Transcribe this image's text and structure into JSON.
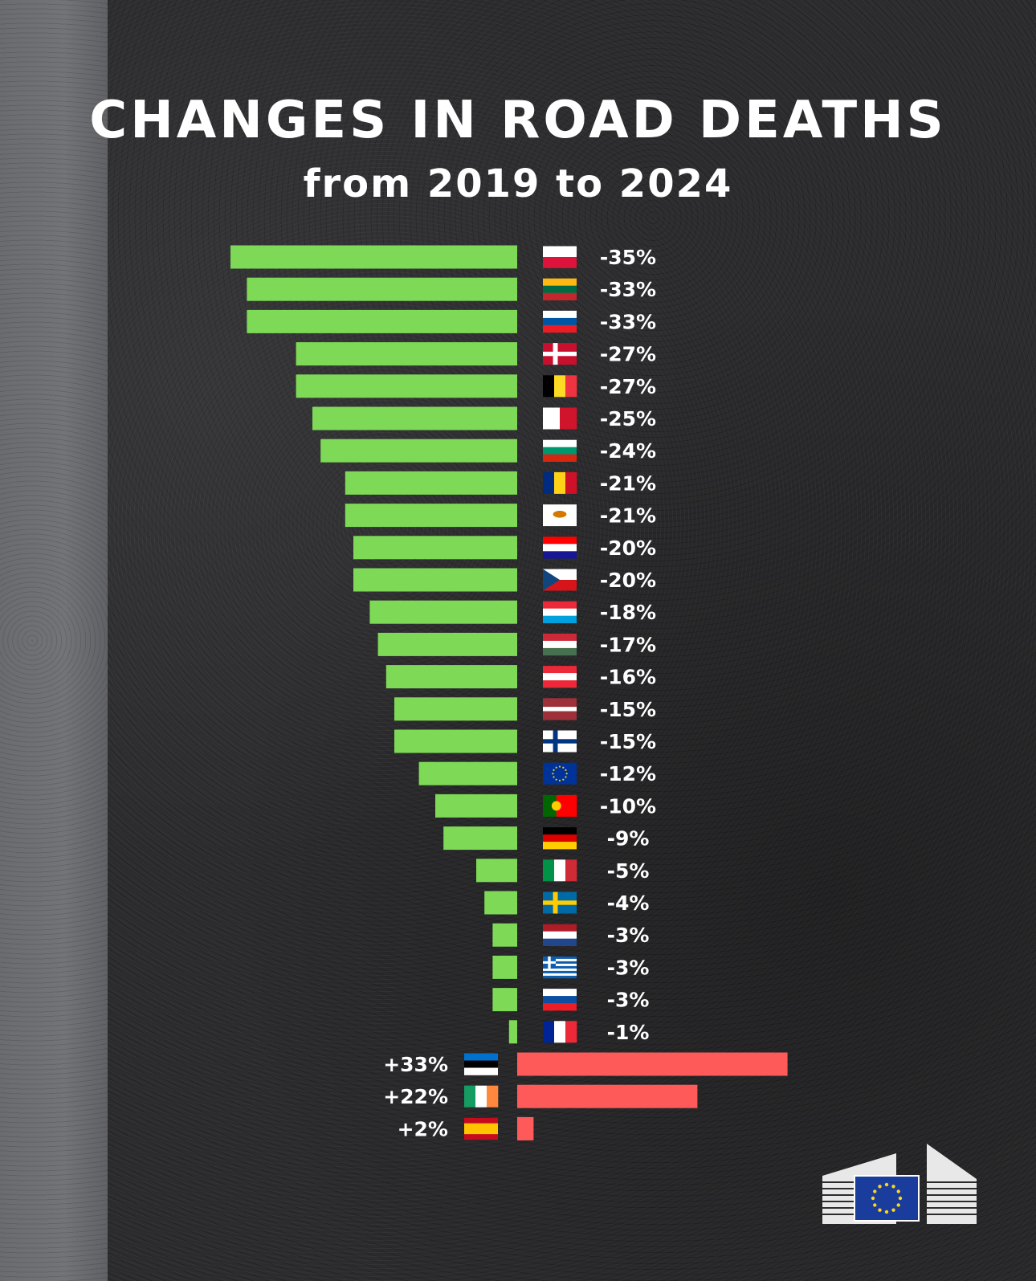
{
  "header": {
    "title": "CHANGES IN ROAD DEATHS",
    "subtitle": "from 2019 to 2024"
  },
  "colors": {
    "decrease": "#7ed957",
    "increase": "#ff5a5a",
    "text": "#ffffff"
  },
  "chart_data": {
    "type": "bar",
    "orientation": "horizontal",
    "title": "CHANGES IN ROAD DEATHS",
    "subtitle": "from 2019 to 2024",
    "unit": "%",
    "categories": [
      "PL",
      "LT",
      "SI",
      "DK",
      "BE",
      "MT",
      "BG",
      "RO",
      "CY",
      "HR",
      "CZ",
      "LU",
      "HU",
      "AT",
      "LV",
      "FI",
      "EU",
      "PT",
      "DE",
      "IT",
      "SE",
      "NL",
      "GR",
      "SK",
      "FR",
      "EE",
      "IE",
      "ES"
    ],
    "values": [
      -35,
      -33,
      -33,
      -27,
      -27,
      -25,
      -24,
      -21,
      -21,
      -20,
      -20,
      -18,
      -17,
      -16,
      -15,
      -15,
      -12,
      -10,
      -9,
      -5,
      -4,
      -3,
      -3,
      -3,
      -1,
      33,
      22,
      2
    ],
    "labels": [
      "-35%",
      "-33%",
      "-33%",
      "-27%",
      "-27%",
      "-25%",
      "-24%",
      "-21%",
      "-21%",
      "-20%",
      "-20%",
      "-18%",
      "-17%",
      "-16%",
      "-15%",
      "-15%",
      "-12%",
      "-10%",
      "-9%",
      "-5%",
      "-4%",
      "-3%",
      "-3%",
      "-3%",
      "-1%",
      "+33%",
      "+22%",
      "+2%"
    ]
  }
}
